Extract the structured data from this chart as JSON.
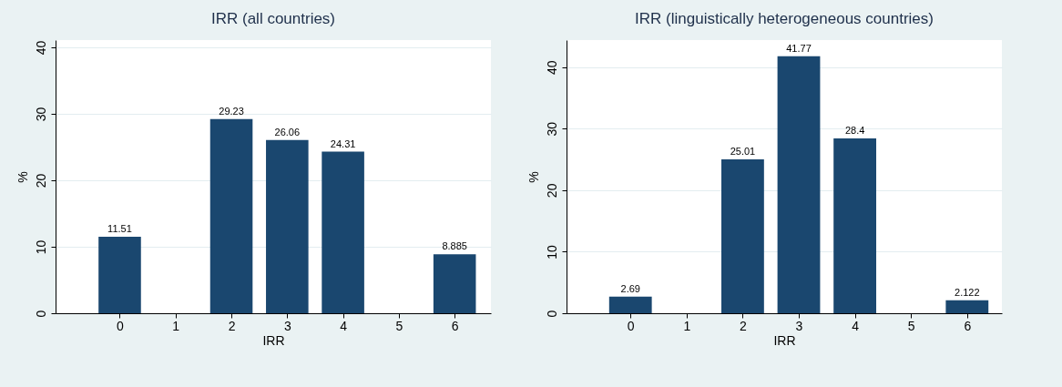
{
  "chart_data": [
    {
      "type": "bar",
      "title": "IRR (all countries)",
      "xlabel": "IRR",
      "ylabel": "%",
      "x": [
        0,
        2,
        3,
        4,
        6
      ],
      "values": [
        11.51,
        29.23,
        26.06,
        24.31,
        8.885
      ],
      "color": "#1a476f",
      "xlim": [
        -1.15,
        6.65
      ],
      "xticks": [
        0,
        1,
        2,
        3,
        4,
        5,
        6
      ],
      "ylim": [
        0,
        41.1
      ],
      "yticks": [
        0,
        10,
        20,
        30,
        40
      ],
      "grid": "y",
      "data_labels": true
    },
    {
      "type": "bar",
      "title": "IRR (linguistically heterogeneous countries)",
      "xlabel": "IRR",
      "ylabel": "%",
      "x": [
        0,
        2,
        3,
        4,
        6
      ],
      "values": [
        2.69,
        25.01,
        41.77,
        28.4,
        2.122
      ],
      "color": "#1a476f",
      "xlim": [
        -1.14,
        6.62
      ],
      "xticks": [
        0,
        1,
        2,
        3,
        4,
        5,
        6
      ],
      "ylim": [
        0,
        44.4
      ],
      "yticks": [
        0,
        10,
        20,
        30,
        40
      ],
      "grid": "y",
      "data_labels": true
    }
  ]
}
